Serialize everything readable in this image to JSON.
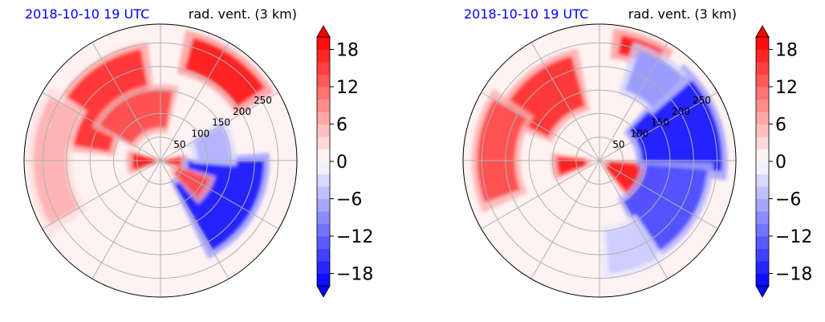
{
  "chart_data": [
    {
      "type": "heatmap",
      "projection": "polar",
      "title_left": "2018-10-10 19 UTC",
      "title_right": "rad. vent. (3 km)",
      "colors": {
        "title_left": "#0000ff",
        "title_right": "#000000"
      },
      "range_rings": [
        50,
        100,
        150,
        200,
        250
      ],
      "range_ring_labels": [
        "50",
        "100",
        "150",
        "200",
        "250"
      ],
      "radial_spokes_deg": [
        0,
        30,
        60,
        90,
        120,
        150,
        180,
        210,
        240,
        270,
        300,
        330
      ],
      "colorbar": {
        "colormap": "bwr",
        "vmin": -20,
        "vmax": 20,
        "step": 2,
        "extend": "both",
        "ticks": [
          -18,
          -12,
          -6,
          0,
          6,
          12,
          18
        ],
        "tick_labels": [
          "−18",
          "−12",
          "−6",
          "0",
          "6",
          "12",
          "18"
        ]
      },
      "field_features": [
        {
          "sign": "positive",
          "az_from_deg": 280,
          "az_to_deg": 350,
          "r_from": 110,
          "r_to": 240,
          "level": 16
        },
        {
          "sign": "positive",
          "az_from_deg": 300,
          "az_to_deg": 10,
          "r_from": 70,
          "r_to": 150,
          "level": 14
        },
        {
          "sign": "positive",
          "az_from_deg": 250,
          "az_to_deg": 285,
          "r_from": 10,
          "r_to": 60,
          "level": 18
        },
        {
          "sign": "positive",
          "az_from_deg": 15,
          "az_to_deg": 55,
          "r_from": 200,
          "r_to": 270,
          "level": 18
        },
        {
          "sign": "positive",
          "az_from_deg": 240,
          "az_to_deg": 300,
          "r_from": 200,
          "r_to": 270,
          "level": 6
        },
        {
          "sign": "positive",
          "az_from_deg": 80,
          "az_to_deg": 110,
          "r_from": 5,
          "r_to": 45,
          "level": 16
        },
        {
          "sign": "negative",
          "az_from_deg": 90,
          "az_to_deg": 150,
          "r_from": 60,
          "r_to": 220,
          "level": -18
        },
        {
          "sign": "negative",
          "az_from_deg": 60,
          "az_to_deg": 90,
          "r_from": 80,
          "r_to": 150,
          "level": -6
        },
        {
          "sign": "positive",
          "az_from_deg": 110,
          "az_to_deg": 135,
          "r_from": 40,
          "r_to": 110,
          "level": 14
        }
      ]
    },
    {
      "type": "heatmap",
      "projection": "polar",
      "title_left": "2018-10-10 19 UTC",
      "title_right": "rad. vent. (3 km)",
      "colors": {
        "title_left": "#0000ff",
        "title_right": "#000000"
      },
      "range_rings": [
        50,
        100,
        150,
        200,
        250
      ],
      "range_ring_labels": [
        "50",
        "100",
        "150",
        "200",
        "250"
      ],
      "radial_spokes_deg": [
        0,
        30,
        60,
        90,
        120,
        150,
        180,
        210,
        240,
        270,
        300,
        330
      ],
      "colorbar": {
        "colormap": "bwr",
        "vmin": -20,
        "vmax": 20,
        "step": 2,
        "extend": "both",
        "ticks": [
          -18,
          -12,
          -6,
          0,
          6,
          12,
          18
        ],
        "tick_labels": [
          "−18",
          "−12",
          "−6",
          "0",
          "6",
          "12",
          "18"
        ]
      },
      "field_features": [
        {
          "sign": "positive",
          "az_from_deg": 295,
          "az_to_deg": 345,
          "r_from": 120,
          "r_to": 230,
          "level": 16
        },
        {
          "sign": "positive",
          "az_from_deg": 250,
          "az_to_deg": 300,
          "r_from": 180,
          "r_to": 260,
          "level": 14
        },
        {
          "sign": "positive",
          "az_from_deg": 250,
          "az_to_deg": 275,
          "r_from": 30,
          "r_to": 90,
          "level": 18
        },
        {
          "sign": "positive",
          "az_from_deg": 10,
          "az_to_deg": 30,
          "r_from": 230,
          "r_to": 270,
          "level": 18
        },
        {
          "sign": "positive",
          "az_from_deg": 95,
          "az_to_deg": 140,
          "r_from": 20,
          "r_to": 130,
          "level": 18
        },
        {
          "sign": "negative",
          "az_from_deg": 45,
          "az_to_deg": 95,
          "r_from": 90,
          "r_to": 260,
          "level": -18
        },
        {
          "sign": "negative",
          "az_from_deg": 95,
          "az_to_deg": 150,
          "r_from": 100,
          "r_to": 230,
          "level": -14
        },
        {
          "sign": "negative",
          "az_from_deg": 20,
          "az_to_deg": 45,
          "r_from": 160,
          "r_to": 250,
          "level": -8
        },
        {
          "sign": "negative",
          "az_from_deg": 150,
          "az_to_deg": 175,
          "r_from": 150,
          "r_to": 240,
          "level": -4
        }
      ]
    }
  ]
}
